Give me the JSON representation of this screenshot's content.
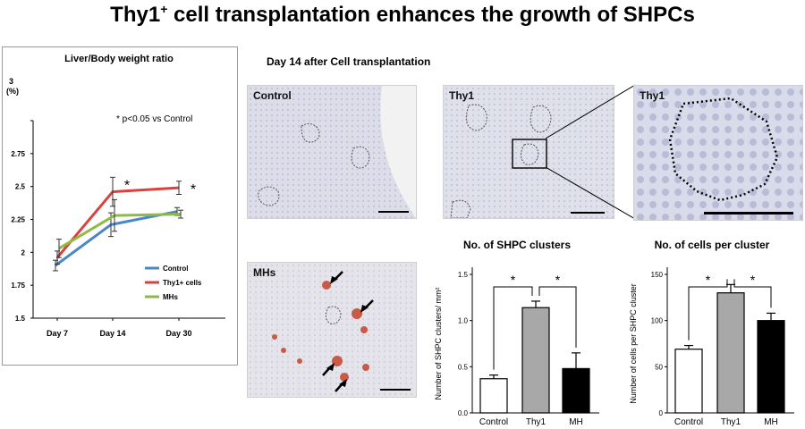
{
  "title": {
    "main": "Thy1",
    "sup": "+",
    "rest": " cell transplantation enhances the growth of SHPCs"
  },
  "line_panel": {
    "title": "Liver/Body weight ratio",
    "unit_top": "3",
    "unit_pct": "(%)",
    "annotation": "* p<0.05 vs Control"
  },
  "micro_section_title": "Day 14 after Cell transplantation",
  "micro_labels": {
    "control": "Control",
    "thy1": "Thy1",
    "thy1_zoom": "Thy1",
    "mhs": "MHs"
  },
  "chart_data": [
    {
      "type": "line",
      "title": "Liver/Body weight ratio",
      "x": [
        "Day 7",
        "Day 14",
        "Day 30"
      ],
      "ylim": [
        1.5,
        3
      ],
      "yticks": [
        "3",
        "2.75",
        "2.5",
        "2.25",
        "2",
        "1.75",
        "1.5"
      ],
      "series": [
        {
          "name": "Control",
          "color": "#4a86c8",
          "values": [
            1.9,
            2.21,
            2.31
          ],
          "errors": [
            0.04,
            0.09,
            0.03
          ]
        },
        {
          "name": "Thy1+ cells",
          "color": "#d9423f",
          "values": [
            1.96,
            2.46,
            2.49
          ],
          "errors": [
            0.05,
            0.11,
            0.05
          ]
        },
        {
          "name": "MHs",
          "color": "#8dbb45",
          "values": [
            2.03,
            2.28,
            2.29
          ],
          "errors": [
            0.07,
            0.12,
            0.03
          ]
        }
      ],
      "significance": [
        "",
        "*",
        "*"
      ],
      "legend": "bottom-right"
    },
    {
      "type": "bar",
      "title": "No. of SHPC clusters",
      "ylabel": "Number of SHPC clusters/ mm²",
      "categories": [
        "Control",
        "Thy1",
        "MH"
      ],
      "values": [
        0.37,
        1.14,
        0.48
      ],
      "errors": [
        0.04,
        0.07,
        0.17
      ],
      "colors": [
        "#ffffff",
        "#a8a8a8",
        "#000000"
      ],
      "ylim": [
        0,
        1.5
      ],
      "yticks": [
        "0.0",
        "0.5",
        "1.0",
        "1.5"
      ],
      "brackets": [
        "*",
        "*"
      ]
    },
    {
      "type": "bar",
      "title": "No. of cells per cluster",
      "ylabel": "Number of cells per SHPC cluster",
      "categories": [
        "Control",
        "Thy1",
        "MH"
      ],
      "values": [
        69,
        130,
        100
      ],
      "errors": [
        4,
        9,
        8
      ],
      "colors": [
        "#ffffff",
        "#a8a8a8",
        "#000000"
      ],
      "ylim": [
        0,
        150
      ],
      "yticks": [
        "0",
        "50",
        "100",
        "150"
      ],
      "brackets": [
        "*",
        "*"
      ]
    }
  ]
}
